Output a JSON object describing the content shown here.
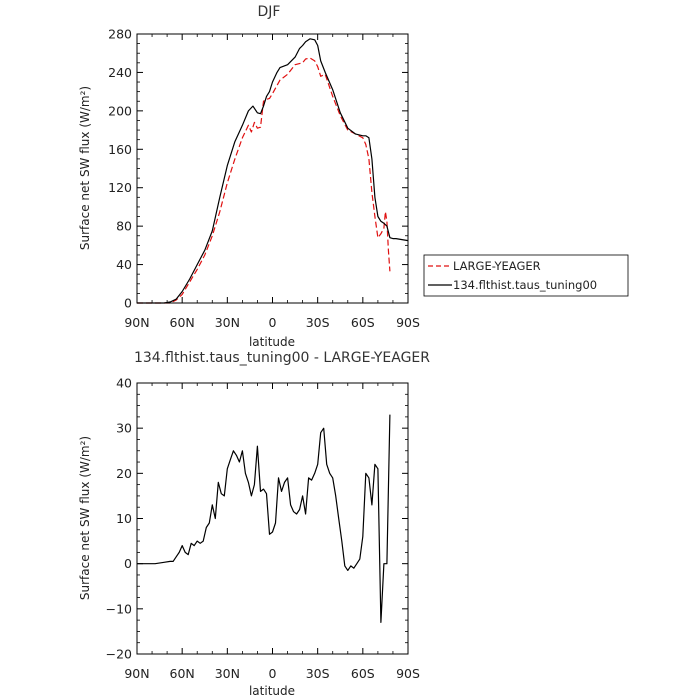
{
  "chart_data": [
    {
      "type": "line",
      "title": "DJF",
      "xlabel": "latitude",
      "ylabel": "Surface net SW flux (W/m²)",
      "xlim": [
        90,
        -90
      ],
      "ylim": [
        0,
        280
      ],
      "xticks": [
        90,
        60,
        30,
        0,
        -30,
        -60,
        -90
      ],
      "xtick_labels": [
        "90N",
        "60N",
        "30N",
        "0",
        "30S",
        "60S",
        "90S"
      ],
      "yticks": [
        0,
        40,
        80,
        120,
        160,
        200,
        240,
        280
      ],
      "ytick_labels": [
        "0",
        "40",
        "80",
        "120",
        "160",
        "200",
        "240",
        "280"
      ],
      "grid": false,
      "legend": "right-outside",
      "series": [
        {
          "name": "LARGE-YEAGER",
          "color": "#e01010",
          "dash": true,
          "x": [
            90,
            80,
            72,
            68,
            64,
            60,
            55,
            50,
            45,
            40,
            35,
            30,
            25,
            20,
            16,
            14,
            12,
            10,
            8,
            6,
            4,
            2,
            0,
            -5,
            -10,
            -15,
            -20,
            -22,
            -25,
            -28,
            -30,
            -32,
            -35,
            -40,
            -45,
            -50,
            -55,
            -60,
            -62,
            -64,
            -66,
            -68,
            -70,
            -72,
            -74,
            -75,
            -76,
            -77,
            -78
          ],
          "y": [
            0,
            0,
            0,
            0,
            3,
            9,
            22,
            35,
            50,
            70,
            95,
            125,
            150,
            172,
            185,
            178,
            188,
            182,
            183,
            210,
            212,
            213,
            218,
            232,
            238,
            248,
            250,
            254,
            255,
            252,
            246,
            236,
            238,
            215,
            195,
            180,
            176,
            172,
            165,
            150,
            115,
            90,
            68,
            72,
            78,
            95,
            85,
            55,
            33
          ]
        },
        {
          "name": "134.flthist.taus_tuning00",
          "color": "#000000",
          "dash": false,
          "x": [
            90,
            80,
            72,
            68,
            64,
            60,
            55,
            50,
            45,
            40,
            35,
            30,
            25,
            20,
            16,
            13,
            10,
            8,
            6,
            4,
            2,
            0,
            -3,
            -5,
            -10,
            -15,
            -18,
            -20,
            -22,
            -25,
            -28,
            -30,
            -32,
            -35,
            -40,
            -45,
            -50,
            -55,
            -60,
            -62,
            -64,
            -66,
            -68,
            -70,
            -72,
            -74,
            -76,
            -78,
            -80,
            -82,
            -86,
            -90
          ],
          "y": [
            0,
            0,
            0,
            1,
            4,
            12,
            25,
            40,
            55,
            75,
            110,
            143,
            168,
            185,
            200,
            205,
            198,
            197,
            205,
            215,
            220,
            230,
            240,
            245,
            248,
            256,
            265,
            268,
            272,
            275,
            274,
            268,
            252,
            240,
            222,
            198,
            182,
            176,
            174,
            174,
            172,
            150,
            110,
            90,
            85,
            83,
            80,
            68,
            67,
            67,
            66,
            65
          ]
        }
      ]
    },
    {
      "type": "line",
      "title": "134.flthist.taus_tuning00 - LARGE-YEAGER",
      "xlabel": "latitude",
      "ylabel": "Surface net SW flux (W/m²)",
      "xlim": [
        90,
        -90
      ],
      "ylim": [
        -20,
        40
      ],
      "xticks": [
        90,
        60,
        30,
        0,
        -30,
        -60,
        -90
      ],
      "xtick_labels": [
        "90N",
        "60N",
        "30N",
        "0",
        "30S",
        "60S",
        "90S"
      ],
      "yticks": [
        -20,
        -10,
        0,
        10,
        20,
        30,
        40
      ],
      "ytick_labels": [
        "−20",
        "−10",
        "0",
        "10",
        "20",
        "30",
        "40"
      ],
      "grid": false,
      "series": [
        {
          "color": "#000000",
          "dash": false,
          "x": [
            90,
            82,
            78,
            72,
            68,
            66,
            64,
            62,
            60,
            58,
            56,
            54,
            52,
            50,
            48,
            46,
            44,
            42,
            40,
            38,
            36,
            34,
            32,
            30,
            28,
            26,
            24,
            22,
            20,
            18,
            16,
            14,
            12,
            10,
            8,
            6,
            4,
            2,
            0,
            -2,
            -4,
            -6,
            -8,
            -10,
            -12,
            -14,
            -16,
            -18,
            -20,
            -22,
            -24,
            -26,
            -28,
            -30,
            -32,
            -34,
            -36,
            -38,
            -40,
            -42,
            -44,
            -46,
            -48,
            -50,
            -52,
            -54,
            -56,
            -58,
            -60,
            -62,
            -64,
            -66,
            -68,
            -70,
            -72,
            -74,
            -76,
            -78
          ],
          "y": [
            0,
            0,
            0,
            0.3,
            0.5,
            0.5,
            1.5,
            2.5,
            4,
            2.5,
            2,
            4.5,
            4,
            5,
            4.5,
            5,
            8,
            9,
            13,
            10,
            18,
            15.5,
            15,
            21,
            23,
            25,
            24,
            22.5,
            25,
            20,
            18,
            15,
            17.5,
            26,
            16,
            16.5,
            15.5,
            6.5,
            7,
            9,
            19,
            16,
            18,
            19,
            13,
            11.5,
            11,
            12,
            15,
            11,
            19,
            18.5,
            20,
            22,
            29,
            30,
            22,
            20,
            19,
            15,
            10,
            5,
            -0.5,
            -1.5,
            -0.5,
            -1,
            0,
            1,
            6,
            20,
            19,
            13,
            22,
            21,
            -13,
            0,
            0,
            33
          ]
        }
      ]
    }
  ]
}
